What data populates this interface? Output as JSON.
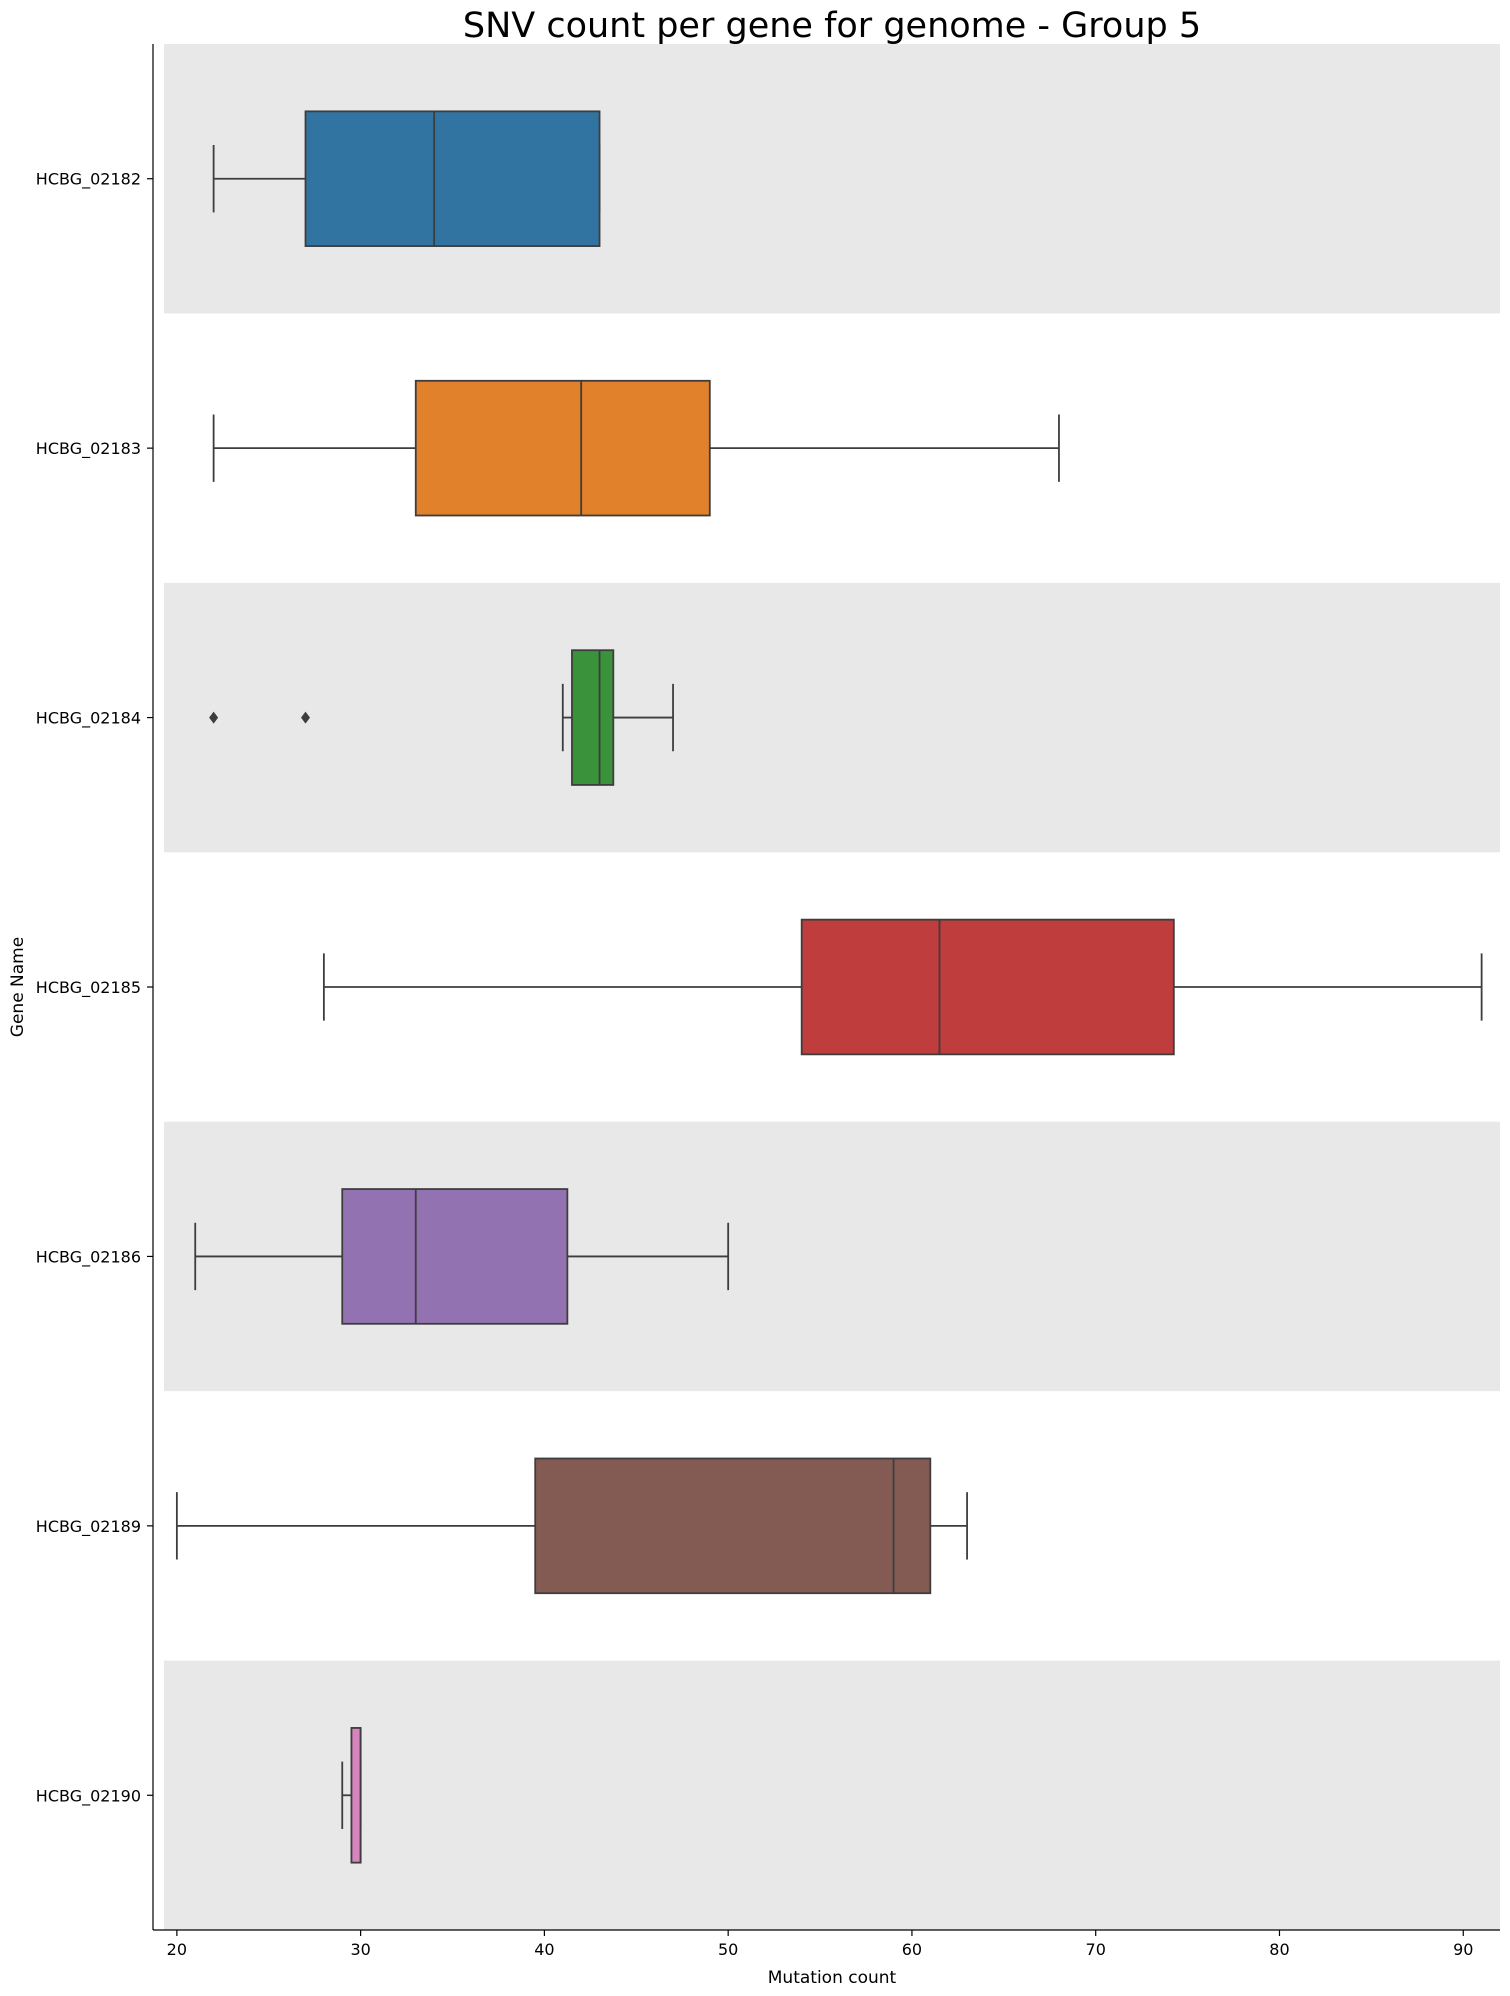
{
  "chart_data": {
    "type": "box",
    "orientation": "horizontal",
    "title": "SNV count per gene for genome - Group 5",
    "xlabel": "Mutation count",
    "ylabel": "Gene Name",
    "xlim": [
      19.3,
      92
    ],
    "xticks": [
      20,
      30,
      40,
      50,
      60,
      70,
      80,
      90
    ],
    "grid": false,
    "row_band_color": "#e8e8e8",
    "series": [
      {
        "name": "HCBG_02182",
        "color": "#3274a1",
        "whisker_low": 22,
        "q1": 27,
        "median": 34,
        "q3": 43,
        "whisker_high": 43,
        "outliers": []
      },
      {
        "name": "HCBG_02183",
        "color": "#e1812c",
        "whisker_low": 22,
        "q1": 33,
        "median": 42,
        "q3": 49,
        "whisker_high": 68,
        "outliers": []
      },
      {
        "name": "HCBG_02184",
        "color": "#3a923a",
        "whisker_low": 41,
        "q1": 41.5,
        "median": 43,
        "q3": 43.75,
        "whisker_high": 47,
        "outliers": [
          22,
          27
        ]
      },
      {
        "name": "HCBG_02185",
        "color": "#c03d3e",
        "whisker_low": 28,
        "q1": 54,
        "median": 61.5,
        "q3": 74.25,
        "whisker_high": 91,
        "outliers": []
      },
      {
        "name": "HCBG_02186",
        "color": "#9372b2",
        "whisker_low": 21,
        "q1": 29,
        "median": 33,
        "q3": 41.25,
        "whisker_high": 50,
        "outliers": []
      },
      {
        "name": "HCBG_02189",
        "color": "#845b53",
        "whisker_low": 20,
        "q1": 39.5,
        "median": 59,
        "q3": 61,
        "whisker_high": 63,
        "outliers": []
      },
      {
        "name": "HCBG_02190",
        "color": "#d684bd",
        "whisker_low": 29,
        "q1": 29.5,
        "median": 30,
        "q3": 30,
        "whisker_high": 30,
        "outliers": []
      }
    ]
  }
}
